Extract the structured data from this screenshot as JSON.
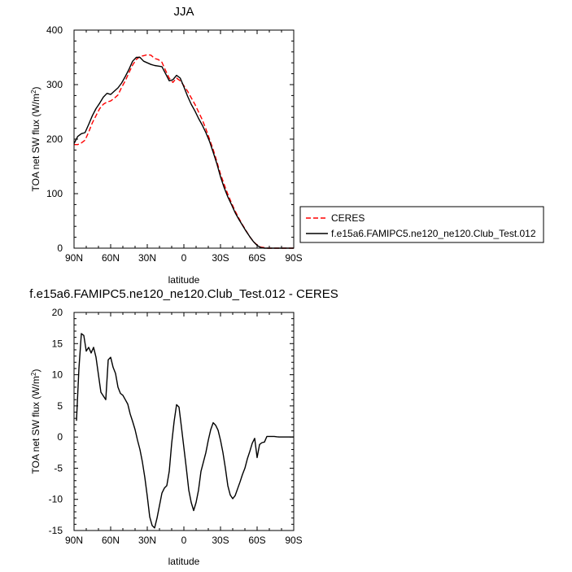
{
  "chart_data": [
    {
      "type": "line",
      "title": "JJA",
      "xlabel": "latitude",
      "ylabel": "TOA net SW flux (W/m",
      "ylabel_sup": "2",
      "ylabel_end": ")",
      "xlim": [
        90,
        -90
      ],
      "ylim": [
        0,
        400
      ],
      "xticks": [
        90,
        60,
        30,
        0,
        -30,
        -60,
        -90
      ],
      "xtick_labels": [
        "90N",
        "60N",
        "30N",
        "0",
        "30S",
        "60S",
        "90S"
      ],
      "yticks": [
        0,
        100,
        200,
        300,
        400
      ],
      "ytick_labels": [
        "0",
        "100",
        "200",
        "300",
        "400"
      ],
      "grid": false,
      "legend_position": "right",
      "series": [
        {
          "name": "CERES",
          "color": "#ff0000",
          "dash": "dashed",
          "x": [
            90,
            87,
            84,
            81,
            78,
            75,
            72,
            69,
            66,
            63,
            60,
            57,
            54,
            51,
            48,
            45,
            42,
            39,
            36,
            33,
            30,
            27,
            24,
            21,
            18,
            15,
            12,
            9,
            6,
            3,
            0,
            -3,
            -6,
            -9,
            -12,
            -15,
            -18,
            -21,
            -24,
            -27,
            -30,
            -33,
            -36,
            -39,
            -42,
            -45,
            -48,
            -51,
            -54,
            -57,
            -60,
            -63,
            -66,
            -69,
            -72,
            -75,
            -78,
            -81,
            -84,
            -87,
            -90
          ],
          "y": [
            190,
            190,
            193,
            198,
            213,
            230,
            243,
            256,
            264,
            268,
            270,
            275,
            281,
            295,
            307,
            322,
            336,
            346,
            352,
            353,
            355,
            354,
            348,
            346,
            341,
            326,
            312,
            304,
            312,
            307,
            298,
            288,
            276,
            264,
            250,
            236,
            219,
            200,
            181,
            159,
            136,
            117,
            99,
            83,
            68,
            55,
            43,
            32,
            21,
            12,
            6,
            2,
            1,
            0,
            0,
            0,
            0,
            0,
            0,
            0,
            0
          ]
        },
        {
          "name": "f.e15a6.FAMIPC5.ne120_ne120.Club_Test.012",
          "color": "#000000",
          "dash": "solid",
          "x": [
            90,
            87,
            84,
            81,
            78,
            75,
            72,
            69,
            66,
            63,
            60,
            57,
            54,
            51,
            48,
            45,
            42,
            39,
            36,
            33,
            30,
            27,
            24,
            21,
            18,
            15,
            12,
            9,
            6,
            3,
            0,
            -3,
            -6,
            -9,
            -12,
            -15,
            -18,
            -21,
            -24,
            -27,
            -30,
            -33,
            -36,
            -39,
            -42,
            -45,
            -48,
            -51,
            -54,
            -57,
            -60,
            -63,
            -66,
            -69,
            -72,
            -75,
            -78,
            -81,
            -84,
            -87,
            -90
          ],
          "y": [
            192,
            205,
            210,
            212,
            227,
            243,
            256,
            266,
            277,
            284,
            282,
            288,
            294,
            303,
            315,
            328,
            343,
            350,
            350,
            343,
            340,
            337,
            335,
            334,
            333,
            320,
            307,
            309,
            317,
            312,
            296,
            279,
            264,
            252,
            238,
            226,
            212,
            196,
            176,
            155,
            131,
            111,
            94,
            80,
            65,
            53,
            42,
            31,
            21,
            12,
            5,
            1,
            0,
            0,
            0,
            0,
            0,
            0,
            0,
            0,
            0
          ]
        }
      ]
    },
    {
      "type": "line",
      "title": "f.e15a6.FAMIPC5.ne120_ne120.Club_Test.012 - CERES",
      "xlabel": "latitude",
      "ylabel": "TOA net SW flux (W/m",
      "ylabel_sup": "2",
      "ylabel_end": ")",
      "xlim": [
        90,
        -90
      ],
      "ylim": [
        -15,
        20
      ],
      "xticks": [
        90,
        60,
        30,
        0,
        -30,
        -60,
        -90
      ],
      "xtick_labels": [
        "90N",
        "60N",
        "30N",
        "0",
        "30S",
        "60S",
        "90S"
      ],
      "yticks": [
        -15,
        -10,
        -5,
        0,
        5,
        10,
        15,
        20
      ],
      "ytick_labels": [
        "-15",
        "-10",
        "-5",
        "0",
        "5",
        "10",
        "15",
        "20"
      ],
      "grid": false,
      "series": [
        {
          "color": "#000000",
          "dash": "solid",
          "x": [
            88,
            86,
            84,
            82,
            80,
            78,
            76,
            74,
            72,
            70,
            68,
            66,
            64,
            62,
            60,
            58,
            56,
            54,
            52,
            50,
            48,
            46,
            44,
            42,
            40,
            38,
            36,
            34,
            32,
            30,
            28,
            26,
            24,
            22,
            20,
            18,
            16,
            14,
            12,
            10,
            8,
            6,
            4,
            2,
            0,
            -2,
            -4,
            -6,
            -8,
            -10,
            -12,
            -14,
            -16,
            -18,
            -20,
            -22,
            -24,
            -26,
            -28,
            -30,
            -32,
            -34,
            -36,
            -38,
            -40,
            -42,
            -44,
            -46,
            -48,
            -50,
            -52,
            -54,
            -56,
            -58,
            -60,
            -62,
            -64,
            -66,
            -68,
            -70,
            -72,
            -74,
            -76,
            -78,
            -80,
            -82,
            -84,
            -86,
            -88,
            -90
          ],
          "y": [
            2.6,
            11,
            16.6,
            16.3,
            13.8,
            14.4,
            13.5,
            14.4,
            12.8,
            10,
            7.2,
            6.6,
            6,
            12.4,
            12.8,
            11.2,
            10.2,
            8,
            7,
            6.7,
            6,
            5.3,
            3.7,
            2.5,
            1.2,
            -0.5,
            -2,
            -4,
            -6.5,
            -9.5,
            -12.8,
            -14.2,
            -14.6,
            -13,
            -11,
            -9,
            -8.2,
            -7.8,
            -5.5,
            -1,
            2.5,
            5.2,
            4.8,
            1.6,
            -1.7,
            -5,
            -8.5,
            -10.5,
            -11.8,
            -10.5,
            -8.5,
            -5.5,
            -4,
            -2.5,
            -0.5,
            1.2,
            2.3,
            1.9,
            1.1,
            -0.5,
            -2.5,
            -5,
            -7.8,
            -9.3,
            -9.9,
            -9.4,
            -8.3,
            -7.2,
            -6,
            -5,
            -3.5,
            -2.3,
            -1,
            -0.2,
            -3.3,
            -1.2,
            -0.9,
            -0.8,
            0.1,
            0.1,
            0.1,
            0.1,
            0.05,
            0,
            0,
            0,
            0,
            0,
            0,
            0
          ]
        }
      ]
    }
  ]
}
